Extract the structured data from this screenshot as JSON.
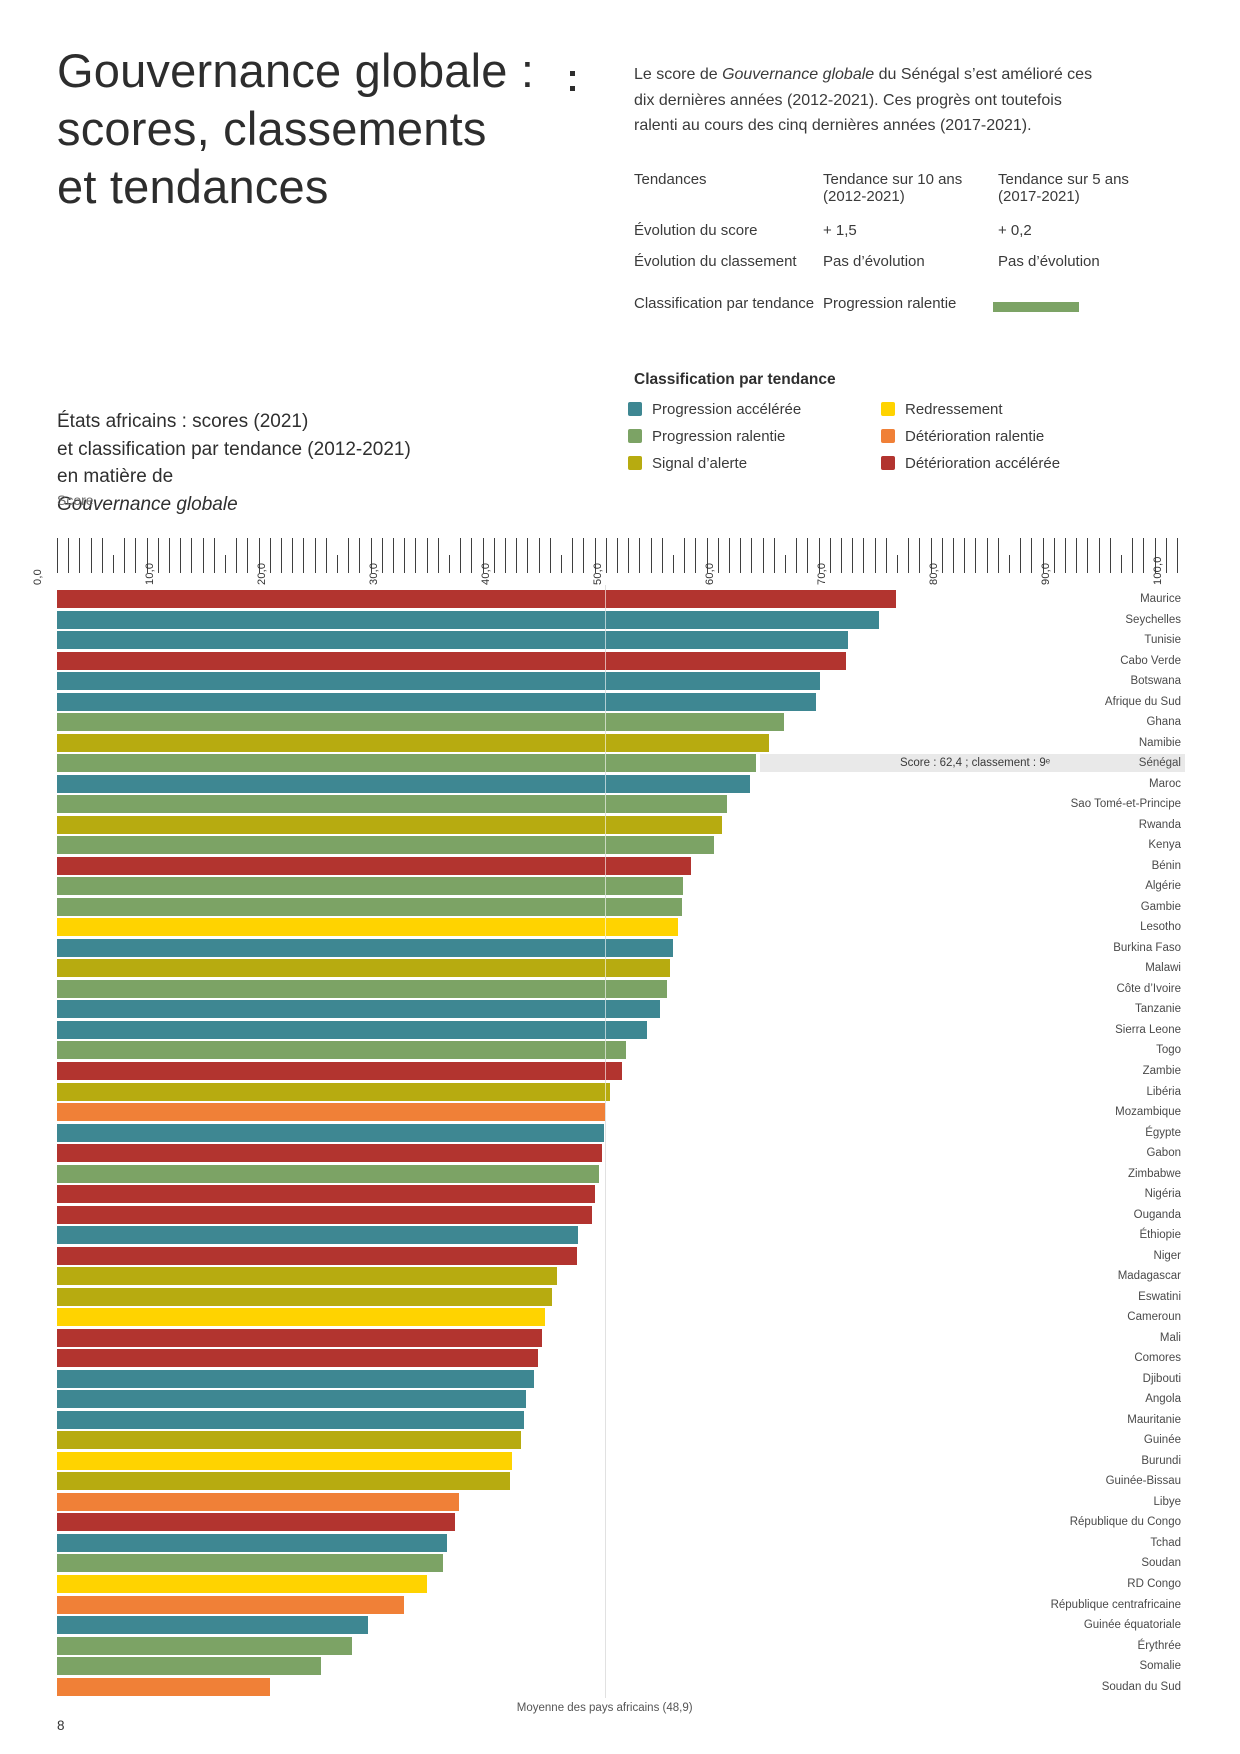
{
  "page": {
    "number": "8"
  },
  "title": {
    "line1": "Gouvernance globale :",
    "line2": "scores, classements",
    "line3": "et tendances"
  },
  "intro": {
    "part1": "Le score de ",
    "emphasis": "Gouvernance globale",
    "part2": " du Sénégal s’est amélioré ces dix dernières années (2012-2021). Ces progrès ont toutefois ralenti au cours des cinq dernières années (2017-2021)."
  },
  "trend_table": {
    "col1_header": "Tendances",
    "col2_header": "Tendance sur 10 ans",
    "col2_sub": "(2012-2021)",
    "col3_header": "Tendance sur 5 ans",
    "col3_sub": "(2017-2021)",
    "rows": [
      {
        "label": "Évolution du score",
        "ten_year": "+ 1,5",
        "five_year": "+ 0,2"
      },
      {
        "label": "Évolution du classement",
        "ten_year": "Pas d’évolution",
        "five_year": "Pas d’évolution"
      }
    ],
    "classification_label": "Classification par tendance",
    "classification_value": "Progression ralentie",
    "classification_color": "#7CA365"
  },
  "legend": {
    "title": "Classification par tendance",
    "items": [
      {
        "label": "Progression accélérée",
        "key": "progression_acceleree",
        "color": "#3E8792"
      },
      {
        "label": "Progression ralentie",
        "key": "progression_ralentie",
        "color": "#7CA365"
      },
      {
        "label": "Signal d’alerte",
        "key": "signal_alerte",
        "color": "#B7AB10"
      },
      {
        "label": "Redressement",
        "key": "redressement",
        "color": "#FFD300"
      },
      {
        "label": "Détérioration ralentie",
        "key": "deterioration_ralentie",
        "color": "#F08037"
      },
      {
        "label": "Détérioration accélérée",
        "key": "deterioration_acceleree",
        "color": "#B2342F"
      }
    ]
  },
  "chart_heading": {
    "line1": "États africains : scores (2021)",
    "line2": "et classification par tendance (2012-2021)",
    "line3_pre": "en matière de ",
    "line3_emphasis": "Gouvernance globale"
  },
  "chart_data": {
    "type": "bar",
    "orientation": "horizontal",
    "axis": {
      "label": "Score",
      "min": 0,
      "max": 100,
      "minor_tick_step": 1,
      "labeled_tick_step": 10,
      "tick_label_style": "french-decimal-one-place"
    },
    "average_line": {
      "label": "Moyenne des pays africains (48,9)",
      "value": 48.9
    },
    "highlight": {
      "country": "Sénégal",
      "note": "Score : 62,4 ; classement : 9ᵉ",
      "band_color": "#e9e9e9"
    },
    "trend_colors": {
      "progression_acceleree": "#3E8792",
      "progression_ralentie": "#7CA365",
      "signal_alerte": "#B7AB10",
      "redressement": "#FFD300",
      "deterioration_ralentie": "#F08037",
      "deterioration_acceleree": "#B2342F"
    },
    "countries": [
      {
        "name": "Maurice",
        "score": 74.9,
        "trend": "deterioration_acceleree"
      },
      {
        "name": "Seychelles",
        "score": 73.4,
        "trend": "progression_acceleree"
      },
      {
        "name": "Tunisie",
        "score": 70.6,
        "trend": "progression_acceleree"
      },
      {
        "name": "Cabo Verde",
        "score": 70.4,
        "trend": "deterioration_acceleree"
      },
      {
        "name": "Botswana",
        "score": 68.1,
        "trend": "progression_acceleree"
      },
      {
        "name": "Afrique du Sud",
        "score": 67.8,
        "trend": "progression_acceleree"
      },
      {
        "name": "Ghana",
        "score": 64.9,
        "trend": "progression_ralentie"
      },
      {
        "name": "Namibie",
        "score": 63.6,
        "trend": "signal_alerte"
      },
      {
        "name": "Sénégal",
        "score": 62.4,
        "trend": "progression_ralentie"
      },
      {
        "name": "Maroc",
        "score": 61.9,
        "trend": "progression_acceleree"
      },
      {
        "name": "Sao Tomé-et-Principe",
        "score": 59.8,
        "trend": "progression_ralentie"
      },
      {
        "name": "Rwanda",
        "score": 59.4,
        "trend": "signal_alerte"
      },
      {
        "name": "Kenya",
        "score": 58.7,
        "trend": "progression_ralentie"
      },
      {
        "name": "Bénin",
        "score": 56.6,
        "trend": "deterioration_acceleree"
      },
      {
        "name": "Algérie",
        "score": 55.9,
        "trend": "progression_ralentie"
      },
      {
        "name": "Gambie",
        "score": 55.8,
        "trend": "progression_ralentie"
      },
      {
        "name": "Lesotho",
        "score": 55.4,
        "trend": "redressement"
      },
      {
        "name": "Burkina Faso",
        "score": 55.0,
        "trend": "progression_acceleree"
      },
      {
        "name": "Malawi",
        "score": 54.7,
        "trend": "signal_alerte"
      },
      {
        "name": "Côte d’Ivoire",
        "score": 54.5,
        "trend": "progression_ralentie"
      },
      {
        "name": "Tanzanie",
        "score": 53.8,
        "trend": "progression_acceleree"
      },
      {
        "name": "Sierra Leone",
        "score": 52.7,
        "trend": "progression_acceleree"
      },
      {
        "name": "Togo",
        "score": 50.8,
        "trend": "progression_ralentie"
      },
      {
        "name": "Zambie",
        "score": 50.4,
        "trend": "deterioration_acceleree"
      },
      {
        "name": "Libéria",
        "score": 49.4,
        "trend": "signal_alerte"
      },
      {
        "name": "Mozambique",
        "score": 48.9,
        "trend": "deterioration_ralentie"
      },
      {
        "name": "Égypte",
        "score": 48.8,
        "trend": "progression_acceleree"
      },
      {
        "name": "Gabon",
        "score": 48.7,
        "trend": "deterioration_acceleree"
      },
      {
        "name": "Zimbabwe",
        "score": 48.4,
        "trend": "progression_ralentie"
      },
      {
        "name": "Nigéria",
        "score": 48.0,
        "trend": "deterioration_acceleree"
      },
      {
        "name": "Ouganda",
        "score": 47.8,
        "trend": "deterioration_acceleree"
      },
      {
        "name": "Éthiopie",
        "score": 46.5,
        "trend": "progression_acceleree"
      },
      {
        "name": "Niger",
        "score": 46.4,
        "trend": "deterioration_acceleree"
      },
      {
        "name": "Madagascar",
        "score": 44.6,
        "trend": "signal_alerte"
      },
      {
        "name": "Eswatini",
        "score": 44.2,
        "trend": "signal_alerte"
      },
      {
        "name": "Cameroun",
        "score": 43.6,
        "trend": "redressement"
      },
      {
        "name": "Mali",
        "score": 43.3,
        "trend": "deterioration_acceleree"
      },
      {
        "name": "Comores",
        "score": 42.9,
        "trend": "deterioration_acceleree"
      },
      {
        "name": "Djibouti",
        "score": 42.6,
        "trend": "progression_acceleree"
      },
      {
        "name": "Angola",
        "score": 41.9,
        "trend": "progression_acceleree"
      },
      {
        "name": "Mauritanie",
        "score": 41.7,
        "trend": "progression_acceleree"
      },
      {
        "name": "Guinée",
        "score": 41.4,
        "trend": "signal_alerte"
      },
      {
        "name": "Burundi",
        "score": 40.6,
        "trend": "redressement"
      },
      {
        "name": "Guinée-Bissau",
        "score": 40.4,
        "trend": "signal_alerte"
      },
      {
        "name": "Libye",
        "score": 35.9,
        "trend": "deterioration_ralentie"
      },
      {
        "name": "République du Congo",
        "score": 35.5,
        "trend": "deterioration_acceleree"
      },
      {
        "name": "Tchad",
        "score": 34.8,
        "trend": "progression_acceleree"
      },
      {
        "name": "Soudan",
        "score": 34.5,
        "trend": "progression_ralentie"
      },
      {
        "name": "RD Congo",
        "score": 33.0,
        "trend": "redressement"
      },
      {
        "name": "République centrafricaine",
        "score": 31.0,
        "trend": "deterioration_ralentie"
      },
      {
        "name": "Guinée équatoriale",
        "score": 27.8,
        "trend": "progression_acceleree"
      },
      {
        "name": "Érythrée",
        "score": 26.3,
        "trend": "progression_ralentie"
      },
      {
        "name": "Somalie",
        "score": 23.6,
        "trend": "progression_ralentie"
      },
      {
        "name": "Soudan du Sud",
        "score": 19.0,
        "trend": "deterioration_ralentie"
      }
    ]
  }
}
